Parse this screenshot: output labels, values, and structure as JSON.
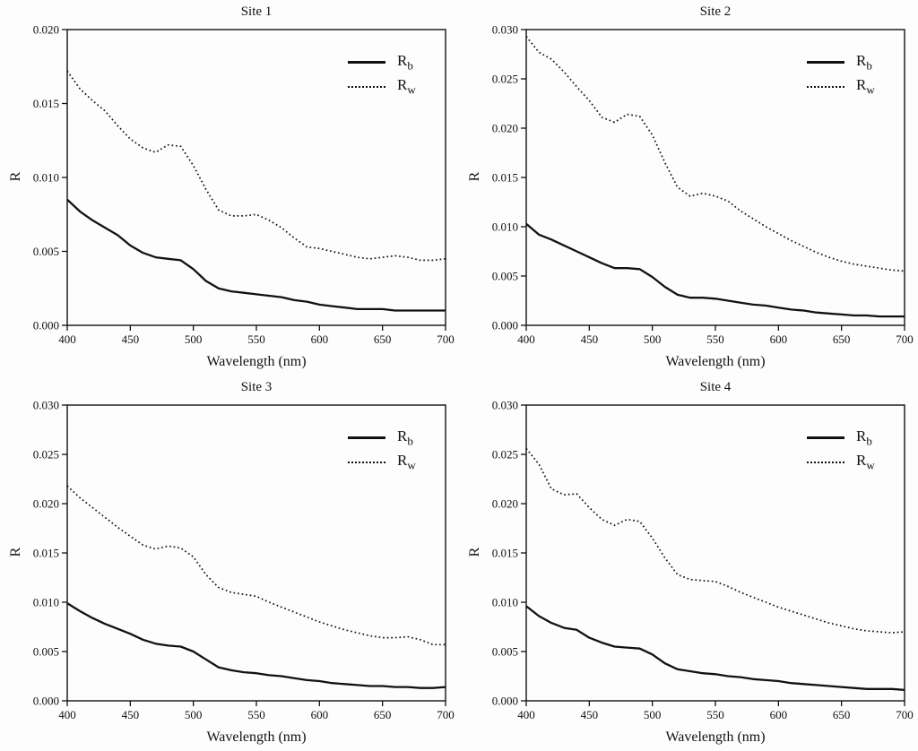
{
  "colors": {
    "line": "#111111",
    "text": "#111111",
    "background": "#fdfdfd"
  },
  "chart_data": [
    {
      "type": "line",
      "title": "Site 1",
      "xlabel": "Wavelength (nm)",
      "ylabel": "R",
      "xlim": [
        400,
        700
      ],
      "ylim": [
        0,
        0.02
      ],
      "xticks": [
        400,
        450,
        500,
        550,
        600,
        650,
        700
      ],
      "yticks": [
        0.0,
        0.005,
        0.01,
        0.015,
        0.02
      ],
      "grid": false,
      "legend_position": "upper right",
      "x": [
        400,
        410,
        420,
        430,
        440,
        450,
        460,
        470,
        480,
        490,
        500,
        510,
        520,
        530,
        540,
        550,
        560,
        570,
        580,
        590,
        600,
        610,
        620,
        630,
        640,
        650,
        660,
        670,
        680,
        690,
        700
      ],
      "series": [
        {
          "name": "Rb",
          "label_main": "R",
          "label_sub": "b",
          "style": "solid",
          "values": [
            0.0085,
            0.0077,
            0.0071,
            0.0066,
            0.0061,
            0.0054,
            0.0049,
            0.0046,
            0.0045,
            0.0044,
            0.0038,
            0.003,
            0.0025,
            0.0023,
            0.0022,
            0.0021,
            0.002,
            0.0019,
            0.0017,
            0.0016,
            0.0014,
            0.0013,
            0.0012,
            0.0011,
            0.0011,
            0.0011,
            0.001,
            0.001,
            0.001,
            0.001,
            0.001
          ]
        },
        {
          "name": "Rw",
          "label_main": "R",
          "label_sub": "w",
          "style": "dotted",
          "values": [
            0.0172,
            0.016,
            0.0152,
            0.0145,
            0.0135,
            0.0126,
            0.012,
            0.0117,
            0.0122,
            0.0121,
            0.0108,
            0.0092,
            0.0078,
            0.0074,
            0.0074,
            0.0075,
            0.0071,
            0.0066,
            0.0059,
            0.0053,
            0.0052,
            0.005,
            0.0048,
            0.0046,
            0.0045,
            0.0046,
            0.0047,
            0.0046,
            0.0044,
            0.0044,
            0.0045
          ]
        }
      ]
    },
    {
      "type": "line",
      "title": "Site 2",
      "xlabel": "Wavelength (nm)",
      "ylabel": "R",
      "xlim": [
        400,
        700
      ],
      "ylim": [
        0,
        0.03
      ],
      "xticks": [
        400,
        450,
        500,
        550,
        600,
        650,
        700
      ],
      "yticks": [
        0.0,
        0.005,
        0.01,
        0.015,
        0.02,
        0.025,
        0.03
      ],
      "grid": false,
      "legend_position": "upper right",
      "x": [
        400,
        410,
        420,
        430,
        440,
        450,
        460,
        470,
        480,
        490,
        500,
        510,
        520,
        530,
        540,
        550,
        560,
        570,
        580,
        590,
        600,
        610,
        620,
        630,
        640,
        650,
        660,
        670,
        680,
        690,
        700
      ],
      "series": [
        {
          "name": "Rb",
          "label_main": "R",
          "label_sub": "b",
          "style": "solid",
          "values": [
            0.0103,
            0.0092,
            0.0087,
            0.0081,
            0.0075,
            0.0069,
            0.0063,
            0.0058,
            0.0058,
            0.0057,
            0.0049,
            0.0039,
            0.0031,
            0.0028,
            0.0028,
            0.0027,
            0.0025,
            0.0023,
            0.0021,
            0.002,
            0.0018,
            0.0016,
            0.0015,
            0.0013,
            0.0012,
            0.0011,
            0.001,
            0.001,
            0.0009,
            0.0009,
            0.0009
          ]
        },
        {
          "name": "Rw",
          "label_main": "R",
          "label_sub": "w",
          "style": "dotted",
          "values": [
            0.0293,
            0.0277,
            0.027,
            0.0257,
            0.0242,
            0.0228,
            0.0211,
            0.0206,
            0.0214,
            0.0212,
            0.0193,
            0.0165,
            0.014,
            0.0131,
            0.0134,
            0.0131,
            0.0126,
            0.0116,
            0.0108,
            0.01,
            0.0093,
            0.0086,
            0.008,
            0.0074,
            0.0069,
            0.0065,
            0.0062,
            0.006,
            0.0058,
            0.0056,
            0.0055
          ]
        }
      ]
    },
    {
      "type": "line",
      "title": "Site 3",
      "xlabel": "Wavelength (nm)",
      "ylabel": "R",
      "xlim": [
        400,
        700
      ],
      "ylim": [
        0,
        0.03
      ],
      "xticks": [
        400,
        450,
        500,
        550,
        600,
        650,
        700
      ],
      "yticks": [
        0.0,
        0.005,
        0.01,
        0.015,
        0.02,
        0.025,
        0.03
      ],
      "grid": false,
      "legend_position": "upper right",
      "x": [
        400,
        410,
        420,
        430,
        440,
        450,
        460,
        470,
        480,
        490,
        500,
        510,
        520,
        530,
        540,
        550,
        560,
        570,
        580,
        590,
        600,
        610,
        620,
        630,
        640,
        650,
        660,
        670,
        680,
        690,
        700
      ],
      "series": [
        {
          "name": "Rb",
          "label_main": "R",
          "label_sub": "b",
          "style": "solid",
          "values": [
            0.0099,
            0.0091,
            0.0084,
            0.0078,
            0.0073,
            0.0068,
            0.0062,
            0.0058,
            0.0056,
            0.0055,
            0.005,
            0.0042,
            0.0034,
            0.0031,
            0.0029,
            0.0028,
            0.0026,
            0.0025,
            0.0023,
            0.0021,
            0.002,
            0.0018,
            0.0017,
            0.0016,
            0.0015,
            0.0015,
            0.0014,
            0.0014,
            0.0013,
            0.0013,
            0.0014
          ]
        },
        {
          "name": "Rw",
          "label_main": "R",
          "label_sub": "w",
          "style": "dotted",
          "values": [
            0.0218,
            0.0206,
            0.0196,
            0.0186,
            0.0176,
            0.0167,
            0.0158,
            0.0154,
            0.0157,
            0.0155,
            0.0146,
            0.0128,
            0.0115,
            0.011,
            0.0108,
            0.0106,
            0.01,
            0.0095,
            0.009,
            0.0085,
            0.008,
            0.0076,
            0.0072,
            0.0069,
            0.0066,
            0.0064,
            0.0064,
            0.0065,
            0.0062,
            0.0057,
            0.0057
          ]
        }
      ]
    },
    {
      "type": "line",
      "title": "Site 4",
      "xlabel": "Wavelength (nm)",
      "ylabel": "R",
      "xlim": [
        400,
        700
      ],
      "ylim": [
        0,
        0.03
      ],
      "xticks": [
        400,
        450,
        500,
        550,
        600,
        650,
        700
      ],
      "yticks": [
        0.0,
        0.005,
        0.01,
        0.015,
        0.02,
        0.025,
        0.03
      ],
      "grid": false,
      "legend_position": "upper right",
      "x": [
        400,
        410,
        420,
        430,
        440,
        450,
        460,
        470,
        480,
        490,
        500,
        510,
        520,
        530,
        540,
        550,
        560,
        570,
        580,
        590,
        600,
        610,
        620,
        630,
        640,
        650,
        660,
        670,
        680,
        690,
        700
      ],
      "series": [
        {
          "name": "Rb",
          "label_main": "R",
          "label_sub": "b",
          "style": "solid",
          "values": [
            0.0096,
            0.0086,
            0.0079,
            0.0074,
            0.0072,
            0.0064,
            0.0059,
            0.0055,
            0.0054,
            0.0053,
            0.0047,
            0.0038,
            0.0032,
            0.003,
            0.0028,
            0.0027,
            0.0025,
            0.0024,
            0.0022,
            0.0021,
            0.002,
            0.0018,
            0.0017,
            0.0016,
            0.0015,
            0.0014,
            0.0013,
            0.0012,
            0.0012,
            0.0012,
            0.0011
          ]
        },
        {
          "name": "Rw",
          "label_main": "R",
          "label_sub": "w",
          "style": "dotted",
          "values": [
            0.0256,
            0.024,
            0.0215,
            0.0209,
            0.021,
            0.0196,
            0.0184,
            0.0178,
            0.0184,
            0.0182,
            0.0165,
            0.0145,
            0.0128,
            0.0123,
            0.0122,
            0.0121,
            0.0116,
            0.011,
            0.0105,
            0.01,
            0.0095,
            0.0091,
            0.0087,
            0.0083,
            0.0079,
            0.0076,
            0.0073,
            0.0071,
            0.007,
            0.0069,
            0.007
          ]
        }
      ]
    }
  ]
}
